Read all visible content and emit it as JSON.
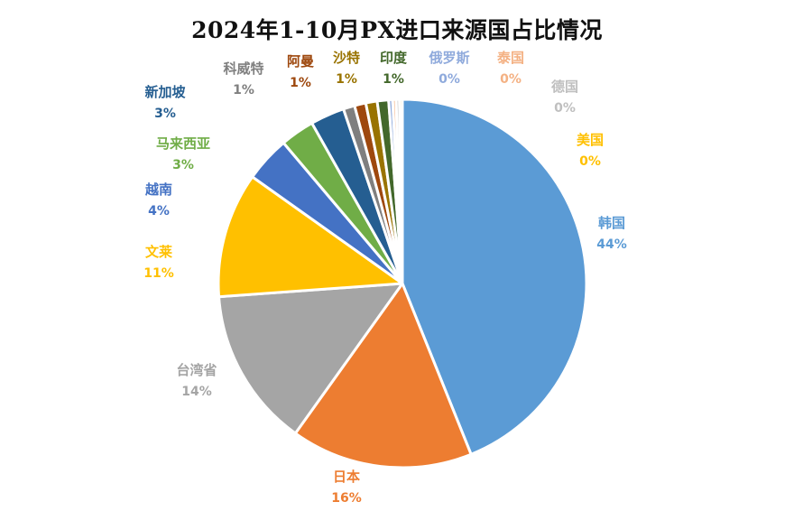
{
  "chart_data": {
    "type": "pie",
    "title": "2024年1-10月PX进口来源国占比情况",
    "slices": [
      {
        "name": "韩国",
        "label": "44%",
        "value": 44,
        "color": "#5B9BD5"
      },
      {
        "name": "日本",
        "label": "16%",
        "value": 16,
        "color": "#ED7D31"
      },
      {
        "name": "台湾省",
        "label": "14%",
        "value": 14,
        "color": "#A5A5A5"
      },
      {
        "name": "文莱",
        "label": "11%",
        "value": 11,
        "color": "#FFC000"
      },
      {
        "name": "越南",
        "label": "4%",
        "value": 4,
        "color": "#4472C4"
      },
      {
        "name": "马来西亚",
        "label": "3%",
        "value": 3,
        "color": "#70AD47"
      },
      {
        "name": "新加坡",
        "label": "3%",
        "value": 3,
        "color": "#255E91"
      },
      {
        "name": "科威特",
        "label": "1%",
        "value": 1,
        "color": "#7F7F7F"
      },
      {
        "name": "阿曼",
        "label": "1%",
        "value": 1,
        "color": "#9E480E"
      },
      {
        "name": "沙特",
        "label": "1%",
        "value": 1,
        "color": "#997300"
      },
      {
        "name": "印度",
        "label": "1%",
        "value": 1,
        "color": "#43682B"
      },
      {
        "name": "俄罗斯",
        "label": "0%",
        "value": 0.35,
        "color": "#8FAADC"
      },
      {
        "name": "泰国",
        "label": "0%",
        "value": 0.3,
        "color": "#F4B183"
      },
      {
        "name": "德国",
        "label": "0%",
        "value": 0.3,
        "color": "#C9C9C9"
      },
      {
        "name": "美国",
        "label": "0%",
        "value": 0.25,
        "color": "#FFD966"
      }
    ],
    "legend": "none",
    "data_labels": "outside"
  }
}
